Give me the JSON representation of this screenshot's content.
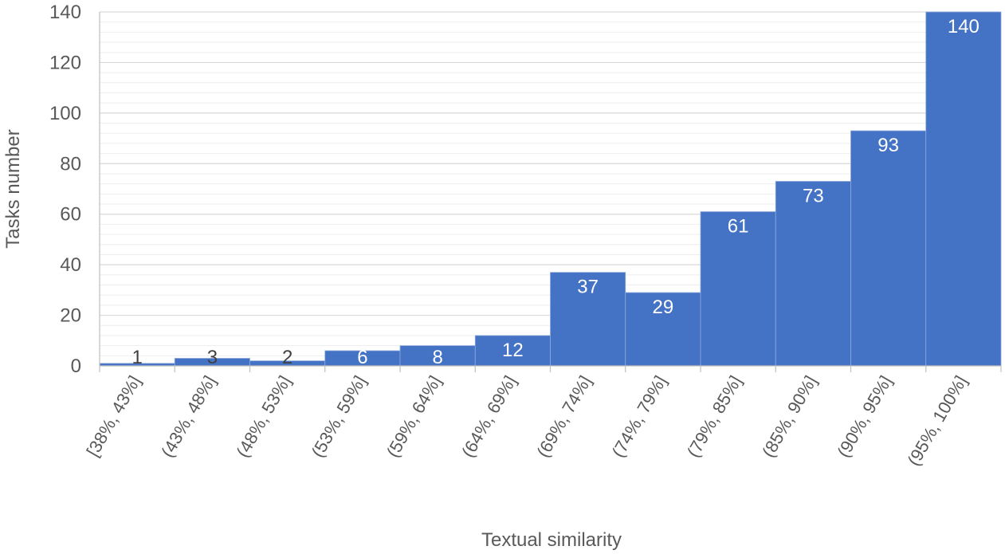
{
  "chart_data": {
    "type": "bar",
    "title": "",
    "xlabel": "Textual similarity",
    "ylabel": "Tasks number",
    "categories": [
      "[38%, 43%]",
      "(43%, 48%]",
      "(48%, 53%]",
      "(53%, 59%]",
      "(59%, 64%]",
      "(64%, 69%]",
      "(69%, 74%]",
      "(74%, 79%]",
      "(79%, 85%]",
      "(85%, 90%]",
      "(90%, 95%]",
      "(95%, 100%]"
    ],
    "values": [
      1,
      3,
      2,
      6,
      8,
      12,
      37,
      29,
      61,
      73,
      93,
      140
    ],
    "ylim": [
      0,
      140
    ],
    "yticks": [
      0,
      20,
      40,
      60,
      80,
      100,
      120,
      140
    ],
    "grid": true,
    "bar_color": "#4472C4",
    "legend": "none"
  }
}
